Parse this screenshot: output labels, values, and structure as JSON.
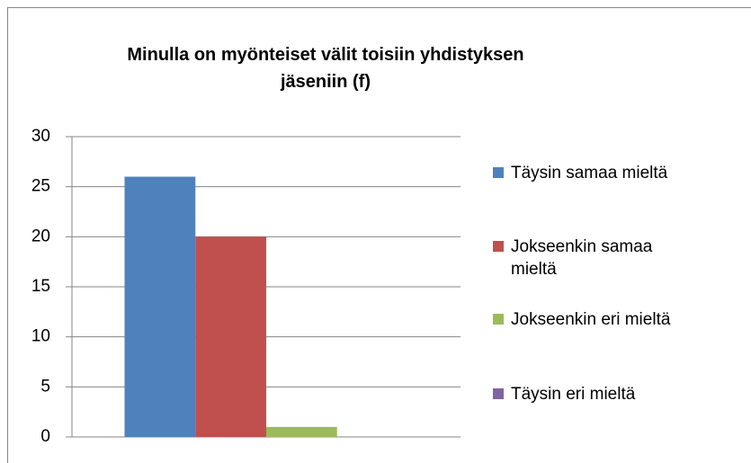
{
  "chart_data": {
    "type": "bar",
    "title": "Minulla on myönteiset välit toisiin yhdistyksen jäseniin (f)",
    "categories": [
      null
    ],
    "series": [
      {
        "name": "Täysin samaa mieltä",
        "color": "#4f81bd",
        "values": [
          26
        ]
      },
      {
        "name": "Jokseenkin samaa mieltä",
        "color": "#c0504d",
        "values": [
          20
        ]
      },
      {
        "name": "Jokseenkin eri mieltä",
        "color": "#9bbb59",
        "values": [
          1
        ]
      },
      {
        "name": "Täysin eri mieltä",
        "color": "#8064a2",
        "values": [
          0
        ]
      }
    ],
    "ylim": [
      0,
      30
    ],
    "yticks": [
      0,
      5,
      10,
      15,
      20,
      25,
      30
    ],
    "grid": true,
    "legend": "right"
  }
}
